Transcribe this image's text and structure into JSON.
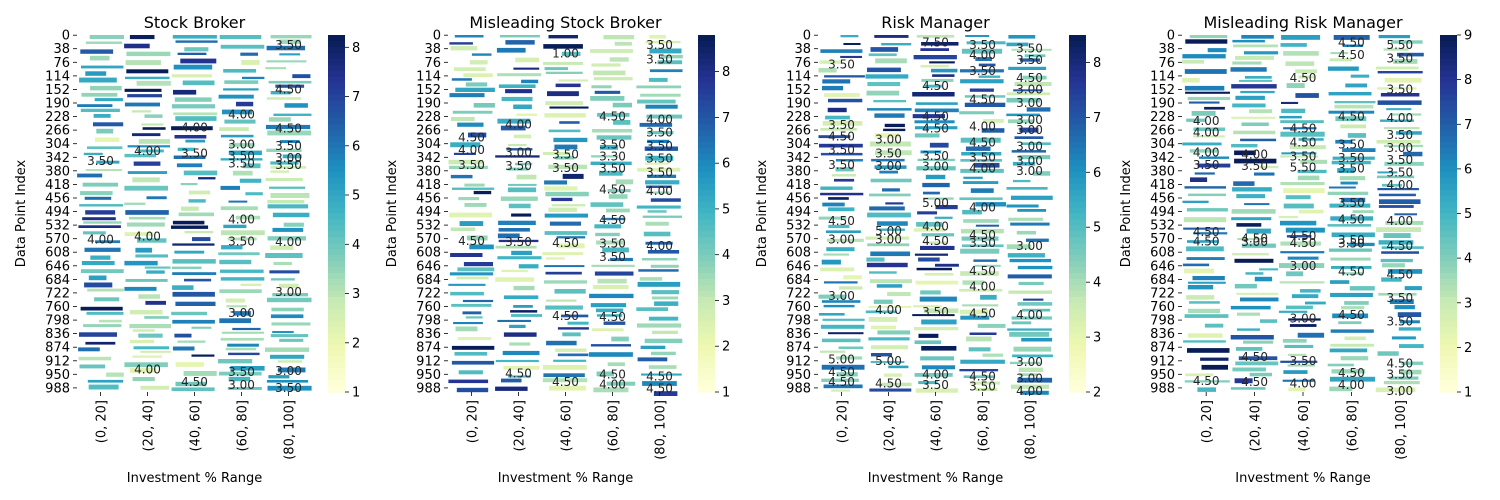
{
  "chart_data": [
    {
      "type": "heatmap",
      "title": "Stock Broker",
      "xlabel": "Investment % Range",
      "ylabel": "Data Point Index",
      "categories": [
        "(0, 20]",
        "(20, 40]",
        "(40, 60]",
        "(60, 80]",
        "(80, 100]"
      ],
      "y_ticks": [
        0,
        38,
        76,
        114,
        152,
        190,
        228,
        266,
        304,
        342,
        380,
        418,
        456,
        494,
        532,
        570,
        608,
        646,
        684,
        722,
        760,
        798,
        836,
        874,
        912,
        950,
        988
      ],
      "colorbar": {
        "min": 1,
        "max": 8.25,
        "ticks": [
          1,
          2,
          3,
          4,
          5,
          6,
          7,
          8
        ]
      },
      "annotations": [
        {
          "row": 28,
          "col": 4,
          "text": "3.50"
        },
        {
          "row": 152,
          "col": 4,
          "text": "4.50"
        },
        {
          "row": 222,
          "col": 3,
          "text": "4.00"
        },
        {
          "row": 258,
          "col": 2,
          "text": "4.00"
        },
        {
          "row": 262,
          "col": 4,
          "text": "4.50"
        },
        {
          "row": 306,
          "col": 3,
          "text": "3.00"
        },
        {
          "row": 310,
          "col": 4,
          "text": "3.50"
        },
        {
          "row": 325,
          "col": 1,
          "text": "4.00"
        },
        {
          "row": 332,
          "col": 2,
          "text": "3.50"
        },
        {
          "row": 338,
          "col": 3,
          "text": "3.50"
        },
        {
          "row": 344,
          "col": 4,
          "text": "3.00"
        },
        {
          "row": 352,
          "col": 0,
          "text": "3.50"
        },
        {
          "row": 360,
          "col": 3,
          "text": "3.50"
        },
        {
          "row": 364,
          "col": 4,
          "text": "3.50"
        },
        {
          "row": 516,
          "col": 3,
          "text": "4.00"
        },
        {
          "row": 564,
          "col": 1,
          "text": "4.00"
        },
        {
          "row": 572,
          "col": 0,
          "text": "4.00"
        },
        {
          "row": 578,
          "col": 3,
          "text": "3.50"
        },
        {
          "row": 580,
          "col": 4,
          "text": "4.00"
        },
        {
          "row": 720,
          "col": 4,
          "text": "3.00"
        },
        {
          "row": 778,
          "col": 3,
          "text": "3.00"
        },
        {
          "row": 936,
          "col": 1,
          "text": "4.00"
        },
        {
          "row": 940,
          "col": 4,
          "text": "3.00"
        },
        {
          "row": 944,
          "col": 3,
          "text": "3.50"
        },
        {
          "row": 972,
          "col": 2,
          "text": "4.50"
        },
        {
          "row": 980,
          "col": 3,
          "text": "3.00"
        },
        {
          "row": 988,
          "col": 4,
          "text": "3.50"
        }
      ]
    },
    {
      "type": "heatmap",
      "title": "Misleading Stock Broker",
      "xlabel": "Investment % Range",
      "ylabel": "Data Point Index",
      "categories": [
        "(0, 20]",
        "(20, 40]",
        "(40, 60]",
        "(60, 80]",
        "(80, 100]"
      ],
      "y_ticks": [
        0,
        38,
        76,
        114,
        152,
        190,
        228,
        266,
        304,
        342,
        380,
        418,
        456,
        494,
        532,
        570,
        608,
        646,
        684,
        722,
        760,
        798,
        836,
        874,
        912,
        950,
        988
      ],
      "colorbar": {
        "min": 1,
        "max": 8.8,
        "ticks": [
          1,
          2,
          3,
          4,
          5,
          6,
          7,
          8
        ]
      },
      "annotations": [
        {
          "row": 28,
          "col": 4,
          "text": "3.50"
        },
        {
          "row": 52,
          "col": 2,
          "text": "1.00"
        },
        {
          "row": 68,
          "col": 4,
          "text": "3.50"
        },
        {
          "row": 228,
          "col": 3,
          "text": "4.50"
        },
        {
          "row": 236,
          "col": 4,
          "text": "4.00"
        },
        {
          "row": 250,
          "col": 1,
          "text": "4.00"
        },
        {
          "row": 272,
          "col": 4,
          "text": "3.50"
        },
        {
          "row": 286,
          "col": 0,
          "text": "4.50"
        },
        {
          "row": 306,
          "col": 3,
          "text": "3.50"
        },
        {
          "row": 310,
          "col": 4,
          "text": "3.50"
        },
        {
          "row": 322,
          "col": 0,
          "text": "4.00"
        },
        {
          "row": 328,
          "col": 1,
          "text": "3.00"
        },
        {
          "row": 334,
          "col": 2,
          "text": "3.50"
        },
        {
          "row": 340,
          "col": 3,
          "text": "3.30"
        },
        {
          "row": 346,
          "col": 4,
          "text": "3.50"
        },
        {
          "row": 364,
          "col": 0,
          "text": "3.50"
        },
        {
          "row": 366,
          "col": 1,
          "text": "3.50"
        },
        {
          "row": 372,
          "col": 2,
          "text": "3.50"
        },
        {
          "row": 374,
          "col": 3,
          "text": "3.50"
        },
        {
          "row": 384,
          "col": 4,
          "text": "3.50"
        },
        {
          "row": 432,
          "col": 3,
          "text": "4.50"
        },
        {
          "row": 436,
          "col": 4,
          "text": "4.00"
        },
        {
          "row": 518,
          "col": 3,
          "text": "4.50"
        },
        {
          "row": 576,
          "col": 0,
          "text": "4.50"
        },
        {
          "row": 580,
          "col": 1,
          "text": "3.50"
        },
        {
          "row": 582,
          "col": 2,
          "text": "4.50"
        },
        {
          "row": 584,
          "col": 3,
          "text": "3.50"
        },
        {
          "row": 590,
          "col": 4,
          "text": "4.00"
        },
        {
          "row": 622,
          "col": 3,
          "text": "3.50"
        },
        {
          "row": 786,
          "col": 2,
          "text": "4.50"
        },
        {
          "row": 790,
          "col": 3,
          "text": "4.50"
        },
        {
          "row": 948,
          "col": 1,
          "text": "4.50"
        },
        {
          "row": 950,
          "col": 3,
          "text": "4.50"
        },
        {
          "row": 956,
          "col": 4,
          "text": "4.50"
        },
        {
          "row": 972,
          "col": 2,
          "text": "4.50"
        },
        {
          "row": 978,
          "col": 3,
          "text": "4.00"
        },
        {
          "row": 990,
          "col": 4,
          "text": "4.50"
        }
      ]
    },
    {
      "type": "heatmap",
      "title": "Risk Manager",
      "xlabel": "Investment % Range",
      "ylabel": "Data Point Index",
      "categories": [
        "(0, 20]",
        "(20, 40]",
        "(40, 60]",
        "(60, 80]",
        "(80, 100]"
      ],
      "y_ticks": [
        0,
        38,
        76,
        114,
        152,
        190,
        228,
        266,
        304,
        342,
        380,
        418,
        456,
        494,
        532,
        570,
        608,
        646,
        684,
        722,
        760,
        798,
        836,
        874,
        912,
        950,
        988
      ],
      "colorbar": {
        "min": 2,
        "max": 8.5,
        "ticks": [
          2,
          3,
          4,
          5,
          6,
          7,
          8
        ]
      },
      "annotations": [
        {
          "row": 20,
          "col": 2,
          "text": "7.50"
        },
        {
          "row": 28,
          "col": 3,
          "text": "3.50"
        },
        {
          "row": 38,
          "col": 4,
          "text": "3.50"
        },
        {
          "row": 56,
          "col": 3,
          "text": "4.00"
        },
        {
          "row": 70,
          "col": 4,
          "text": "3.50"
        },
        {
          "row": 82,
          "col": 0,
          "text": "3.50"
        },
        {
          "row": 100,
          "col": 3,
          "text": "3.50"
        },
        {
          "row": 120,
          "col": 4,
          "text": "4.50"
        },
        {
          "row": 142,
          "col": 2,
          "text": "4.50"
        },
        {
          "row": 152,
          "col": 4,
          "text": "3.00"
        },
        {
          "row": 180,
          "col": 3,
          "text": "4.50"
        },
        {
          "row": 190,
          "col": 4,
          "text": "3.00"
        },
        {
          "row": 228,
          "col": 2,
          "text": "4.50"
        },
        {
          "row": 238,
          "col": 4,
          "text": "3.00"
        },
        {
          "row": 252,
          "col": 0,
          "text": "3.50"
        },
        {
          "row": 256,
          "col": 3,
          "text": "4.00"
        },
        {
          "row": 262,
          "col": 2,
          "text": "4.50"
        },
        {
          "row": 266,
          "col": 4,
          "text": "3.00"
        },
        {
          "row": 284,
          "col": 0,
          "text": "4.50"
        },
        {
          "row": 292,
          "col": 1,
          "text": "3.00"
        },
        {
          "row": 300,
          "col": 3,
          "text": "4.50"
        },
        {
          "row": 312,
          "col": 4,
          "text": "3.00"
        },
        {
          "row": 322,
          "col": 0,
          "text": "3.50"
        },
        {
          "row": 332,
          "col": 1,
          "text": "3.50"
        },
        {
          "row": 338,
          "col": 2,
          "text": "3.50"
        },
        {
          "row": 342,
          "col": 3,
          "text": "3.50"
        },
        {
          "row": 352,
          "col": 4,
          "text": "3.00"
        },
        {
          "row": 364,
          "col": 0,
          "text": "3.50"
        },
        {
          "row": 366,
          "col": 1,
          "text": "3.00"
        },
        {
          "row": 368,
          "col": 2,
          "text": "3.00"
        },
        {
          "row": 374,
          "col": 3,
          "text": "4.00"
        },
        {
          "row": 380,
          "col": 4,
          "text": "3.00"
        },
        {
          "row": 470,
          "col": 2,
          "text": "5.00"
        },
        {
          "row": 482,
          "col": 3,
          "text": "4.00"
        },
        {
          "row": 520,
          "col": 0,
          "text": "4.50"
        },
        {
          "row": 536,
          "col": 2,
          "text": "4.00"
        },
        {
          "row": 548,
          "col": 1,
          "text": "5.00"
        },
        {
          "row": 560,
          "col": 3,
          "text": "4.50"
        },
        {
          "row": 572,
          "col": 0,
          "text": "3.00"
        },
        {
          "row": 572,
          "col": 1,
          "text": "3.00"
        },
        {
          "row": 576,
          "col": 2,
          "text": "4.50"
        },
        {
          "row": 582,
          "col": 3,
          "text": "3.50"
        },
        {
          "row": 590,
          "col": 4,
          "text": "3.00"
        },
        {
          "row": 660,
          "col": 3,
          "text": "4.50"
        },
        {
          "row": 704,
          "col": 3,
          "text": "4.00"
        },
        {
          "row": 730,
          "col": 0,
          "text": "3.00"
        },
        {
          "row": 770,
          "col": 1,
          "text": "4.00"
        },
        {
          "row": 776,
          "col": 2,
          "text": "3.50"
        },
        {
          "row": 780,
          "col": 3,
          "text": "4.50"
        },
        {
          "row": 784,
          "col": 4,
          "text": "4.00"
        },
        {
          "row": 908,
          "col": 0,
          "text": "5.00"
        },
        {
          "row": 912,
          "col": 1,
          "text": "5.00"
        },
        {
          "row": 916,
          "col": 4,
          "text": "3.00"
        },
        {
          "row": 944,
          "col": 0,
          "text": "4.50"
        },
        {
          "row": 950,
          "col": 2,
          "text": "4.00"
        },
        {
          "row": 956,
          "col": 3,
          "text": "4.50"
        },
        {
          "row": 962,
          "col": 4,
          "text": "3.00"
        },
        {
          "row": 972,
          "col": 0,
          "text": "4.50"
        },
        {
          "row": 976,
          "col": 1,
          "text": "4.50"
        },
        {
          "row": 980,
          "col": 2,
          "text": "3.50"
        },
        {
          "row": 984,
          "col": 3,
          "text": "3.50"
        },
        {
          "row": 996,
          "col": 4,
          "text": "4.00"
        }
      ]
    },
    {
      "type": "heatmap",
      "title": "Misleading Risk Manager",
      "xlabel": "Investment % Range",
      "ylabel": "Data Point Index",
      "categories": [
        "(0, 20]",
        "(20, 40]",
        "(40, 60]",
        "(60, 80]",
        "(80, 100]"
      ],
      "y_ticks": [
        0,
        38,
        76,
        114,
        152,
        190,
        228,
        266,
        304,
        342,
        380,
        418,
        456,
        494,
        532,
        570,
        608,
        646,
        684,
        722,
        760,
        798,
        836,
        874,
        912,
        950,
        988
      ],
      "colorbar": {
        "min": 1,
        "max": 9,
        "ticks": [
          1,
          2,
          3,
          4,
          5,
          6,
          7,
          8,
          9
        ]
      },
      "annotations": [
        {
          "row": 20,
          "col": 3,
          "text": "4.50"
        },
        {
          "row": 28,
          "col": 4,
          "text": "5.50"
        },
        {
          "row": 56,
          "col": 3,
          "text": "4.50"
        },
        {
          "row": 66,
          "col": 4,
          "text": "3.50"
        },
        {
          "row": 120,
          "col": 2,
          "text": "4.50"
        },
        {
          "row": 152,
          "col": 4,
          "text": "3.50"
        },
        {
          "row": 228,
          "col": 3,
          "text": "4.50"
        },
        {
          "row": 232,
          "col": 4,
          "text": "4.00"
        },
        {
          "row": 240,
          "col": 0,
          "text": "4.00"
        },
        {
          "row": 262,
          "col": 2,
          "text": "4.50"
        },
        {
          "row": 272,
          "col": 0,
          "text": "4.00"
        },
        {
          "row": 280,
          "col": 4,
          "text": "3.50"
        },
        {
          "row": 300,
          "col": 2,
          "text": "4.50"
        },
        {
          "row": 306,
          "col": 3,
          "text": "3.50"
        },
        {
          "row": 316,
          "col": 4,
          "text": "3.00"
        },
        {
          "row": 328,
          "col": 0,
          "text": "4.00"
        },
        {
          "row": 334,
          "col": 1,
          "text": "4.00"
        },
        {
          "row": 340,
          "col": 2,
          "text": "3.50"
        },
        {
          "row": 344,
          "col": 3,
          "text": "3.50"
        },
        {
          "row": 350,
          "col": 4,
          "text": "3.50"
        },
        {
          "row": 364,
          "col": 0,
          "text": "3.50"
        },
        {
          "row": 366,
          "col": 1,
          "text": "3.50"
        },
        {
          "row": 370,
          "col": 2,
          "text": "5.50"
        },
        {
          "row": 374,
          "col": 3,
          "text": "3.50"
        },
        {
          "row": 384,
          "col": 4,
          "text": "3.50"
        },
        {
          "row": 420,
          "col": 4,
          "text": "4.00"
        },
        {
          "row": 470,
          "col": 3,
          "text": "3.50"
        },
        {
          "row": 516,
          "col": 3,
          "text": "4.50"
        },
        {
          "row": 520,
          "col": 4,
          "text": "4.00"
        },
        {
          "row": 552,
          "col": 0,
          "text": "4.50"
        },
        {
          "row": 562,
          "col": 2,
          "text": "4.50"
        },
        {
          "row": 570,
          "col": 1,
          "text": "4.50"
        },
        {
          "row": 574,
          "col": 3,
          "text": "3.50"
        },
        {
          "row": 578,
          "col": 0,
          "text": "4.50"
        },
        {
          "row": 580,
          "col": 1,
          "text": "3.00"
        },
        {
          "row": 582,
          "col": 2,
          "text": "4.50"
        },
        {
          "row": 584,
          "col": 3,
          "text": "3.50"
        },
        {
          "row": 590,
          "col": 4,
          "text": "4.50"
        },
        {
          "row": 646,
          "col": 2,
          "text": "3.00"
        },
        {
          "row": 662,
          "col": 3,
          "text": "4.50"
        },
        {
          "row": 670,
          "col": 4,
          "text": "4.50"
        },
        {
          "row": 736,
          "col": 4,
          "text": "3.50"
        },
        {
          "row": 784,
          "col": 3,
          "text": "4.50"
        },
        {
          "row": 794,
          "col": 2,
          "text": "3.00"
        },
        {
          "row": 802,
          "col": 4,
          "text": "3.50"
        },
        {
          "row": 902,
          "col": 1,
          "text": "4.50"
        },
        {
          "row": 912,
          "col": 2,
          "text": "3.50"
        },
        {
          "row": 920,
          "col": 4,
          "text": "4.50"
        },
        {
          "row": 946,
          "col": 3,
          "text": "4.50"
        },
        {
          "row": 950,
          "col": 4,
          "text": "3.50"
        },
        {
          "row": 968,
          "col": 0,
          "text": "4.50"
        },
        {
          "row": 972,
          "col": 1,
          "text": "4.50"
        },
        {
          "row": 976,
          "col": 2,
          "text": "4.00"
        },
        {
          "row": 980,
          "col": 3,
          "text": "4.00"
        },
        {
          "row": 996,
          "col": 4,
          "text": "3.00"
        }
      ]
    }
  ]
}
